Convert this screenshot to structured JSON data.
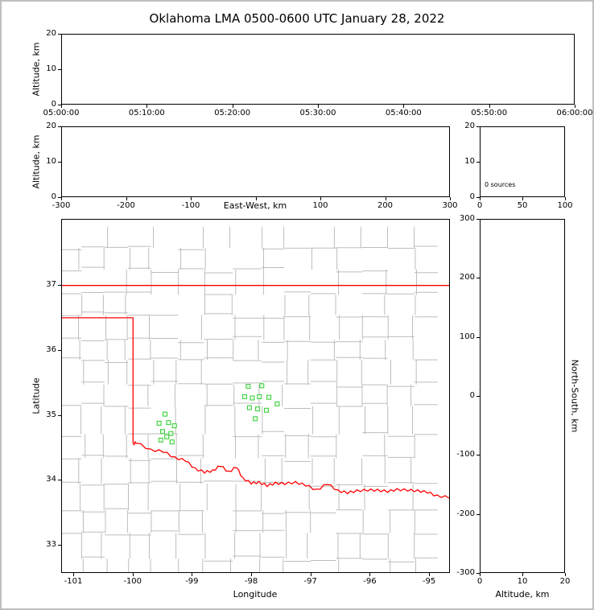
{
  "title": "Oklahoma LMA 0500-0600 UTC January 28, 2022",
  "colors": {
    "state_border": "#ff0000",
    "county_line": "#bdbdbd",
    "station_stroke": "#33cc33",
    "station_fill": "#e9ffe9"
  },
  "chart_data": [
    {
      "id": "time_height",
      "type": "scatter",
      "ylabel": "Altitude, km",
      "x_range": [
        0,
        6
      ],
      "y_range": [
        0,
        20
      ],
      "xticks": {
        "values": [
          0,
          1,
          2,
          3,
          4,
          5,
          6
        ],
        "labels": [
          "05:00:00",
          "05:10:00",
          "05:20:00",
          "05:30:00",
          "05:40:00",
          "05:50:00",
          "06:00:00"
        ]
      },
      "yticks": {
        "values": [
          0,
          10,
          20
        ],
        "labels": [
          "0",
          "10",
          "20"
        ]
      },
      "points": []
    },
    {
      "id": "ew_height",
      "type": "scatter",
      "xlabel": "East-West, km",
      "ylabel": "Altitude, km",
      "x_range": [
        -300,
        300
      ],
      "y_range": [
        0,
        20
      ],
      "xticks": {
        "values": [
          -300,
          -200,
          -100,
          0,
          100,
          200,
          300
        ],
        "labels": [
          "-300",
          "-200",
          "-100",
          "",
          "100",
          "200",
          "300"
        ]
      },
      "yticks": {
        "values": [
          0,
          10,
          20
        ],
        "labels": [
          "0",
          "10",
          "20"
        ]
      },
      "points": []
    },
    {
      "id": "src_hist",
      "type": "histogram",
      "annotation": "0 sources",
      "x_range": [
        0,
        100
      ],
      "y_range": [
        0,
        20
      ],
      "xticks": {
        "values": [
          0,
          50,
          100
        ],
        "labels": [
          "0",
          "50",
          "100"
        ]
      },
      "yticks": {
        "values": [
          0,
          10,
          20
        ],
        "labels": [
          "0",
          "10",
          "20"
        ]
      },
      "values": []
    },
    {
      "id": "map",
      "type": "scatter",
      "xlabel": "Longitude",
      "ylabel": "Latitude",
      "x_range": [
        -101.204,
        -94.648
      ],
      "y_range": [
        32.567,
        38.016
      ],
      "xticks": {
        "values": [
          -101,
          -100,
          -99,
          -98,
          -97,
          -96,
          -95
        ],
        "labels": [
          "-101",
          "-100",
          "-99",
          "-98",
          "-97",
          "-96",
          "-95"
        ]
      },
      "yticks": {
        "values": [
          33,
          34,
          35,
          36,
          37
        ],
        "labels": [
          "33",
          "34",
          "35",
          "36",
          "37"
        ]
      },
      "stations": [
        [
          -98.05,
          35.44
        ],
        [
          -97.82,
          35.45
        ],
        [
          -98.11,
          35.28
        ],
        [
          -97.98,
          35.26
        ],
        [
          -97.86,
          35.28
        ],
        [
          -97.7,
          35.27
        ],
        [
          -98.03,
          35.11
        ],
        [
          -97.89,
          35.09
        ],
        [
          -97.74,
          35.07
        ],
        [
          -97.56,
          35.17
        ],
        [
          -97.93,
          34.94
        ],
        [
          -99.46,
          35.01
        ],
        [
          -99.56,
          34.87
        ],
        [
          -99.4,
          34.88
        ],
        [
          -99.3,
          34.83
        ],
        [
          -99.5,
          34.74
        ],
        [
          -99.36,
          34.71
        ],
        [
          -99.53,
          34.61
        ],
        [
          -99.34,
          34.58
        ],
        [
          -99.43,
          34.66
        ]
      ],
      "state_border": [
        [
          [
            -101.204,
            37.0
          ],
          [
            -94.648,
            37.0
          ]
        ],
        [
          [
            -101.204,
            36.5
          ],
          [
            -100.0,
            36.5
          ],
          [
            -100.0,
            34.56
          ]
        ],
        [
          [
            -100.0,
            34.56
          ],
          [
            -99.95,
            34.56
          ],
          [
            -99.7,
            34.47
          ],
          [
            -99.49,
            34.42
          ],
          [
            -99.29,
            34.35
          ],
          [
            -99.11,
            34.28
          ],
          [
            -98.95,
            34.18
          ],
          [
            -98.79,
            34.1
          ],
          [
            -98.65,
            34.15
          ],
          [
            -98.52,
            34.2
          ],
          [
            -98.38,
            34.13
          ],
          [
            -98.25,
            34.18
          ],
          [
            -98.14,
            34.03
          ],
          [
            -98.0,
            33.93
          ],
          [
            -97.87,
            33.97
          ],
          [
            -97.73,
            33.89
          ],
          [
            -97.59,
            33.96
          ],
          [
            -97.43,
            33.92
          ],
          [
            -97.25,
            33.97
          ],
          [
            -97.08,
            33.9
          ],
          [
            -96.89,
            33.85
          ],
          [
            -96.71,
            33.92
          ],
          [
            -96.53,
            33.84
          ],
          [
            -96.37,
            33.78
          ],
          [
            -96.21,
            33.84
          ],
          [
            -96.03,
            33.82
          ],
          [
            -95.86,
            33.85
          ],
          [
            -95.69,
            33.8
          ],
          [
            -95.53,
            33.86
          ],
          [
            -95.35,
            33.82
          ],
          [
            -95.18,
            33.84
          ],
          [
            -95.02,
            33.79
          ],
          [
            -94.85,
            33.76
          ],
          [
            -94.648,
            33.71
          ]
        ]
      ]
    },
    {
      "id": "ns_height",
      "type": "scatter",
      "xlabel": "Altitude, km",
      "ylabel_right": "North-South, km",
      "x_range": [
        0,
        20
      ],
      "y_range": [
        -300,
        300
      ],
      "xticks": {
        "values": [
          0,
          10,
          20
        ],
        "labels": [
          "0",
          "10",
          "20"
        ]
      },
      "yticks": {
        "values": [
          -300,
          -200,
          -100,
          0,
          100,
          200,
          300
        ],
        "labels": [
          "-300",
          "-200",
          "-100",
          "0",
          "100",
          "200",
          "300"
        ]
      },
      "points": []
    }
  ]
}
